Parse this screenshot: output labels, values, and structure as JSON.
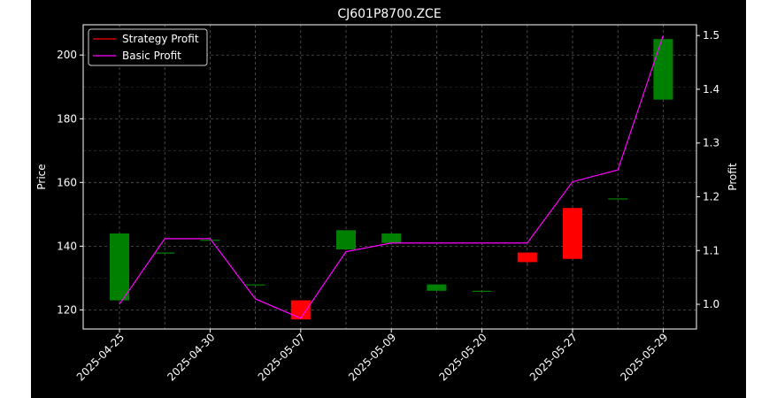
{
  "chart_data": {
    "type": "candlestick",
    "title": "CJ601P8700.ZCE",
    "ylabel_left": "Price",
    "ylabel_right": "Profit",
    "x_labels": [
      "2025-04-25",
      "2025-04-30",
      "2025-05-07",
      "2025-05-09",
      "2025-05-20",
      "2025-05-27",
      "2025-05-29"
    ],
    "y_left_ticks": [
      120,
      140,
      160,
      180,
      200
    ],
    "y_left_range": [
      114,
      209.5
    ],
    "y_right_ticks": [
      1.0,
      1.1,
      1.2,
      1.3,
      1.4,
      1.5
    ],
    "y_right_range": [
      0.954,
      1.52
    ],
    "grid": true,
    "legend_position": "upper-left",
    "candles": [
      {
        "x": 0,
        "open": 123,
        "close": 144,
        "high": 144,
        "low": 123
      },
      {
        "x": 1,
        "open": 138,
        "close": 138,
        "high": 138,
        "low": 138
      },
      {
        "x": 2,
        "open": 142,
        "close": 142,
        "high": 142,
        "low": 142
      },
      {
        "x": 3,
        "open": 128,
        "close": 128,
        "high": 128,
        "low": 128
      },
      {
        "x": 4,
        "open": 123,
        "close": 117,
        "high": 123,
        "low": 117
      },
      {
        "x": 5,
        "open": 139,
        "close": 145,
        "high": 145,
        "low": 139
      },
      {
        "x": 6,
        "open": 141,
        "close": 144,
        "high": 144,
        "low": 141
      },
      {
        "x": 7,
        "open": 126,
        "close": 128,
        "high": 128,
        "low": 126
      },
      {
        "x": 8,
        "open": 126,
        "close": 126,
        "high": 126,
        "low": 126
      },
      {
        "x": 9,
        "open": 138,
        "close": 135,
        "high": 138,
        "low": 134
      },
      {
        "x": 10,
        "open": 152,
        "close": 136,
        "high": 152,
        "low": 136
      },
      {
        "x": 11,
        "open": 155,
        "close": 155,
        "high": 155,
        "low": 155
      },
      {
        "x": 12,
        "open": 186,
        "close": 205,
        "high": 205,
        "low": 186
      }
    ],
    "series": [
      {
        "name": "Strategy Profit",
        "color": "#ff0000",
        "values": []
      },
      {
        "name": "Basic Profit",
        "color": "#ff00ff",
        "values": [
          1.0,
          1.122,
          1.122,
          1.01,
          0.974,
          1.098,
          1.114,
          1.114,
          1.114,
          1.114,
          1.228,
          1.25,
          1.5
        ]
      }
    ],
    "colors": {
      "up": "#008000",
      "down": "#ff0000",
      "background": "#000000"
    }
  }
}
